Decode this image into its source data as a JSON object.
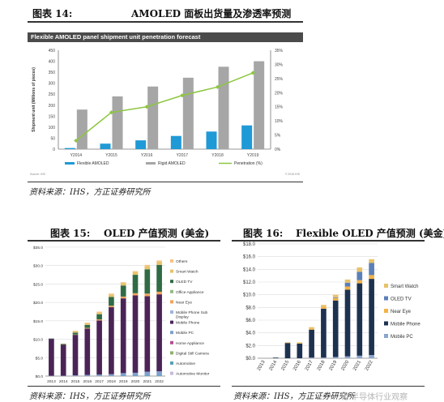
{
  "fig14": {
    "caption_no": "图表 14:",
    "caption": "AMOLED 面板出货量及渗透率预测",
    "band_title": "Flexible AMOLED panel shipment unit penetration forecast",
    "source": "资料来源：IHS，方正证券研究所",
    "foot_left": "Source: IHS",
    "foot_right": "© 2016 IHS"
  },
  "fig15": {
    "caption_no": "图表 15:",
    "caption": "OLED 产值预测 (美金)",
    "source": "资料来源：IHS，方正证券研究所"
  },
  "fig16": {
    "caption_no": "图表 16:",
    "caption": "Flexible OLED 产值预测 (美金)",
    "source": "资料来源：IHS，方正证券研究所"
  },
  "watermark": "化 半导体行业观察",
  "colors": {
    "flexible": "#1f9ad6",
    "rigid": "#a6a6a6",
    "penetration": "#8dc63f",
    "others": "#f6c485",
    "smart_watch": "#e8c26a",
    "oled_tv": "#2f6b45",
    "office_appliance": "#97b985",
    "near_eye": "#f3a25b",
    "mobile_phone_sub": "#9fb5d9",
    "mobile_phone": "#4b2457",
    "mobile_pc": "#7fa0cf",
    "home_appliance": "#b05090",
    "dsm_camera": "#8fb06f",
    "automotive": "#5aa0b5",
    "auto_monitor": "#c7b9de",
    "fig16_near_eye": "#f3b247",
    "fig16_oled_tv": "#5b7fb8",
    "fig16_mobile_phone": "#1d3250",
    "fig16_mobile_pc": "#8ca5cf"
  },
  "chart_data": [
    {
      "id": "fig14",
      "type": "bar",
      "title": "Flexible AMOLED panel shipment unit penetration forecast",
      "categories": [
        "Y2014",
        "Y2015",
        "Y2016",
        "Y2017",
        "Y2018",
        "Y2019"
      ],
      "series": [
        {
          "name": "Flexible AMOLED",
          "values": [
            5,
            25,
            40,
            60,
            80,
            108
          ]
        },
        {
          "name": "Rigid AMOLED",
          "values": [
            180,
            240,
            285,
            325,
            375,
            400
          ]
        },
        {
          "name": "Penetration (%)",
          "type": "line",
          "axis": "right",
          "values": [
            3,
            13,
            15,
            19,
            22,
            27
          ]
        }
      ],
      "ylabel": "Shipment unit (Millions of pieces)",
      "ylim": [
        0,
        450
      ],
      "yticks": [
        "0",
        "50",
        "100",
        "150",
        "200",
        "250",
        "300",
        "350",
        "400",
        "450"
      ],
      "y2lim": [
        0,
        35
      ],
      "y2ticks": [
        "0%",
        "5%",
        "10%",
        "15%",
        "20%",
        "25%",
        "30%",
        "35%"
      ],
      "legend": "bottom",
      "grid": false
    },
    {
      "id": "fig15",
      "type": "bar",
      "stacked": true,
      "categories": [
        "2013",
        "2014",
        "2015",
        "2016",
        "2017",
        "2018",
        "2019",
        "2020",
        "2021",
        "2022"
      ],
      "ylim": [
        0,
        35
      ],
      "yticks": [
        "$0.0",
        "$5.0",
        "$10.0",
        "$15.0",
        "$20.0",
        "$25.0",
        "$30.0",
        "$35.0"
      ],
      "grid": true,
      "legend": "right",
      "series": [
        {
          "name": "Automotive Monitor",
          "values": [
            0,
            0,
            0,
            0,
            0,
            0,
            0,
            0,
            0,
            0
          ]
        },
        {
          "name": "Automotive",
          "values": [
            0,
            0,
            0,
            0,
            0,
            0,
            0.1,
            0.1,
            0.2,
            0.2
          ]
        },
        {
          "name": "Digital Still Camera",
          "values": [
            0,
            0,
            0,
            0,
            0,
            0,
            0,
            0,
            0,
            0
          ]
        },
        {
          "name": "Home Appliance",
          "values": [
            0,
            0,
            0,
            0,
            0,
            0,
            0,
            0,
            0,
            0
          ]
        },
        {
          "name": "Mobile PC",
          "values": [
            0.1,
            0.1,
            0.2,
            0.3,
            0.4,
            0.5,
            0.7,
            0.8,
            1.0,
            1.1
          ]
        },
        {
          "name": "Mobile Phone",
          "values": [
            10.0,
            8.4,
            11.0,
            12.6,
            14.7,
            18.2,
            20.3,
            21.0,
            20.5,
            20.9
          ]
        },
        {
          "name": "Mobile Phone Sub Display",
          "values": [
            0,
            0,
            0,
            0,
            0,
            0,
            0,
            0,
            0,
            0
          ]
        },
        {
          "name": "Near Eye",
          "values": [
            0,
            0,
            0.1,
            0.2,
            0.3,
            0.4,
            0.5,
            0.6,
            0.7,
            0.7
          ]
        },
        {
          "name": "Office Appliance",
          "values": [
            0,
            0,
            0,
            0,
            0,
            0,
            0,
            0,
            0,
            0
          ]
        },
        {
          "name": "OLED TV",
          "values": [
            0.1,
            0.2,
            0.5,
            0.8,
            1.4,
            2.4,
            3.0,
            5.0,
            6.6,
            7.3
          ]
        },
        {
          "name": "Smart Watch",
          "values": [
            0,
            0.1,
            0.4,
            0.5,
            0.5,
            0.7,
            0.7,
            0.8,
            0.9,
            0.9
          ]
        },
        {
          "name": "Others",
          "values": [
            0,
            0,
            0.1,
            0.1,
            0.2,
            0.2,
            0.2,
            0.2,
            0.3,
            0.3
          ]
        }
      ]
    },
    {
      "id": "fig16",
      "type": "bar",
      "stacked": true,
      "categories": [
        "2013",
        "2014",
        "2015",
        "2016",
        "2017",
        "2018",
        "2019",
        "2020",
        "2021",
        "2022"
      ],
      "ylim": [
        0,
        18
      ],
      "yticks": [
        "$0.0",
        "$2.0",
        "$4.0",
        "$6.0",
        "$8.0",
        "$10.0",
        "$12.0",
        "$14.0",
        "$16.0",
        "$18.0"
      ],
      "grid": true,
      "legend": "right",
      "series": [
        {
          "name": "Mobile PC",
          "values": [
            0,
            0,
            0,
            0,
            0.1,
            0.1,
            0.2,
            0.3,
            0.4,
            0.5
          ]
        },
        {
          "name": "Mobile Phone",
          "values": [
            0,
            0.1,
            2.4,
            2.3,
            4.4,
            7.7,
            8.9,
            10.5,
            11.4,
            12.0
          ]
        },
        {
          "name": "Near Eye",
          "values": [
            0,
            0,
            0.1,
            0.1,
            0.2,
            0.3,
            0.4,
            0.5,
            0.5,
            0.6
          ]
        },
        {
          "name": "OLED TV",
          "values": [
            0,
            0,
            0,
            0,
            0,
            0,
            0.1,
            0.6,
            1.3,
            1.9
          ]
        },
        {
          "name": "Smart Watch",
          "values": [
            0,
            0,
            0,
            0.1,
            0.2,
            0.3,
            0.4,
            0.5,
            0.7,
            0.6
          ]
        }
      ]
    }
  ]
}
